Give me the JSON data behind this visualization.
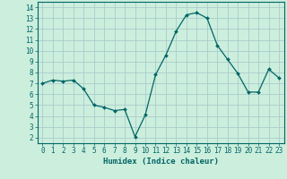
{
  "x": [
    0,
    1,
    2,
    3,
    4,
    5,
    6,
    7,
    8,
    9,
    10,
    11,
    12,
    13,
    14,
    15,
    16,
    17,
    18,
    19,
    20,
    21,
    22,
    23
  ],
  "y": [
    7.0,
    7.3,
    7.2,
    7.3,
    6.5,
    5.0,
    4.8,
    4.5,
    4.6,
    2.1,
    4.1,
    7.8,
    9.6,
    11.8,
    13.3,
    13.5,
    13.0,
    10.5,
    9.2,
    7.9,
    6.2,
    6.2,
    8.3,
    7.5
  ],
  "line_color": "#006666",
  "marker_color": "#006666",
  "bg_color": "#cceedd",
  "grid_color": "#aacccc",
  "xlabel": "Humidex (Indice chaleur)",
  "ylabel_ticks": [
    2,
    3,
    4,
    5,
    6,
    7,
    8,
    9,
    10,
    11,
    12,
    13,
    14
  ],
  "xlim": [
    -0.5,
    23.5
  ],
  "ylim": [
    1.5,
    14.5
  ]
}
